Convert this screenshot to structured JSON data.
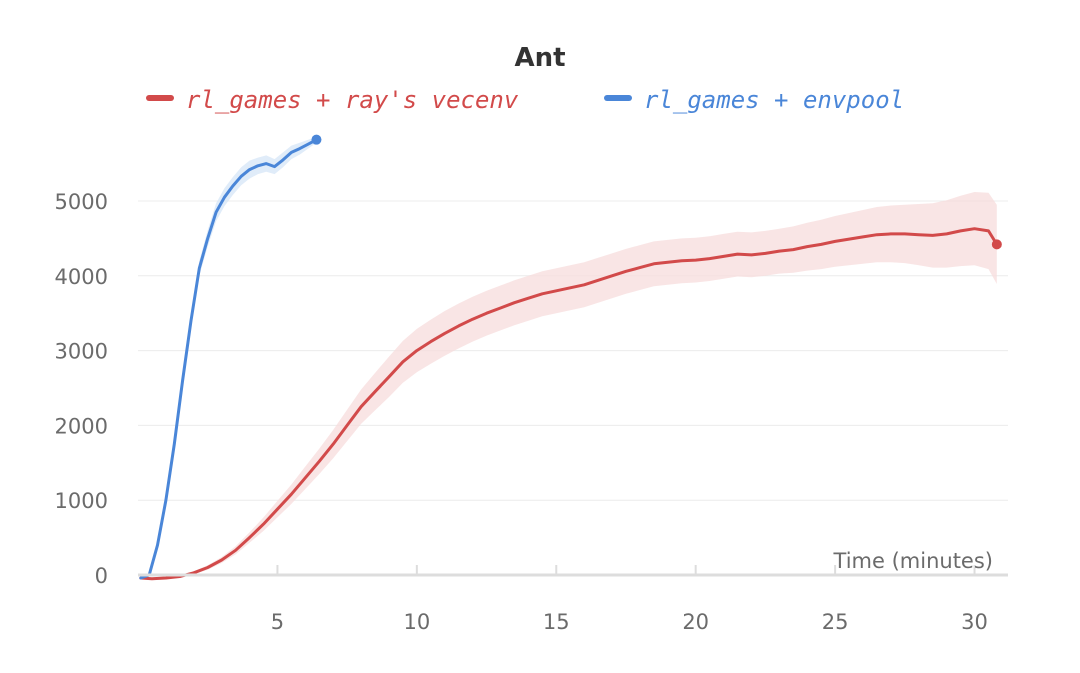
{
  "chart_data": {
    "type": "line",
    "title": "Ant",
    "xlabel": "Time (minutes)",
    "ylabel": "",
    "xlim": [
      0,
      31.2
    ],
    "ylim": [
      -50,
      6000
    ],
    "x_ticks": [
      5,
      10,
      15,
      20,
      25,
      30
    ],
    "y_ticks": [
      0,
      1000,
      2000,
      3000,
      4000,
      5000
    ],
    "grid": "horizontal",
    "legend_position": "top",
    "series": [
      {
        "name": "rl_games + ray's vecenv",
        "color": "#d24a4a",
        "band_color": "#f7dcdc",
        "x": [
          0.1,
          0.5,
          1.0,
          1.5,
          2.0,
          2.5,
          3.0,
          3.5,
          4.0,
          4.5,
          5.0,
          5.5,
          6.0,
          6.5,
          7.0,
          7.5,
          8.0,
          8.5,
          9.0,
          9.5,
          10.0,
          10.5,
          11.0,
          11.5,
          12.0,
          12.5,
          13.0,
          13.5,
          14.0,
          14.5,
          15.0,
          15.5,
          16.0,
          16.5,
          17.0,
          17.5,
          18.0,
          18.5,
          19.0,
          19.5,
          20.0,
          20.5,
          21.0,
          21.5,
          22.0,
          22.5,
          23.0,
          23.5,
          24.0,
          24.5,
          25.0,
          25.5,
          26.0,
          26.5,
          27.0,
          27.5,
          28.0,
          28.5,
          29.0,
          29.5,
          30.0,
          30.5,
          30.8
        ],
        "y": [
          -40,
          -50,
          -40,
          -20,
          30,
          100,
          200,
          330,
          500,
          680,
          880,
          1080,
          1300,
          1520,
          1750,
          2000,
          2250,
          2450,
          2650,
          2850,
          3000,
          3120,
          3230,
          3330,
          3420,
          3500,
          3570,
          3640,
          3700,
          3760,
          3800,
          3840,
          3880,
          3940,
          4000,
          4060,
          4110,
          4160,
          4180,
          4200,
          4210,
          4230,
          4260,
          4290,
          4280,
          4300,
          4330,
          4350,
          4390,
          4420,
          4460,
          4490,
          4520,
          4550,
          4560,
          4560,
          4550,
          4540,
          4560,
          4600,
          4630,
          4600,
          4420
        ],
        "band": [
          10,
          10,
          10,
          15,
          20,
          30,
          40,
          55,
          70,
          90,
          110,
          130,
          150,
          170,
          190,
          210,
          230,
          250,
          270,
          280,
          290,
          295,
          300,
          300,
          300,
          300,
          300,
          300,
          300,
          300,
          300,
          300,
          300,
          300,
          300,
          300,
          300,
          300,
          300,
          300,
          300,
          300,
          300,
          300,
          300,
          300,
          300,
          310,
          320,
          330,
          340,
          350,
          360,
          370,
          380,
          390,
          410,
          430,
          450,
          470,
          490,
          510,
          530
        ]
      },
      {
        "name": "rl_games + envpool",
        "color": "#4a86d8",
        "band_color": "#d6e6f7",
        "x": [
          0.1,
          0.4,
          0.7,
          1.0,
          1.3,
          1.6,
          1.9,
          2.2,
          2.5,
          2.8,
          3.1,
          3.4,
          3.7,
          4.0,
          4.3,
          4.6,
          4.9,
          5.2,
          5.5,
          5.8,
          6.1,
          6.4
        ],
        "y": [
          -40,
          0,
          400,
          1000,
          1750,
          2600,
          3400,
          4100,
          4500,
          4850,
          5050,
          5200,
          5330,
          5420,
          5470,
          5500,
          5460,
          5550,
          5650,
          5700,
          5760,
          5820
        ],
        "band": [
          10,
          20,
          40,
          60,
          70,
          80,
          90,
          100,
          110,
          120,
          120,
          120,
          120,
          120,
          110,
          110,
          100,
          100,
          90,
          80,
          60,
          40
        ]
      }
    ]
  }
}
